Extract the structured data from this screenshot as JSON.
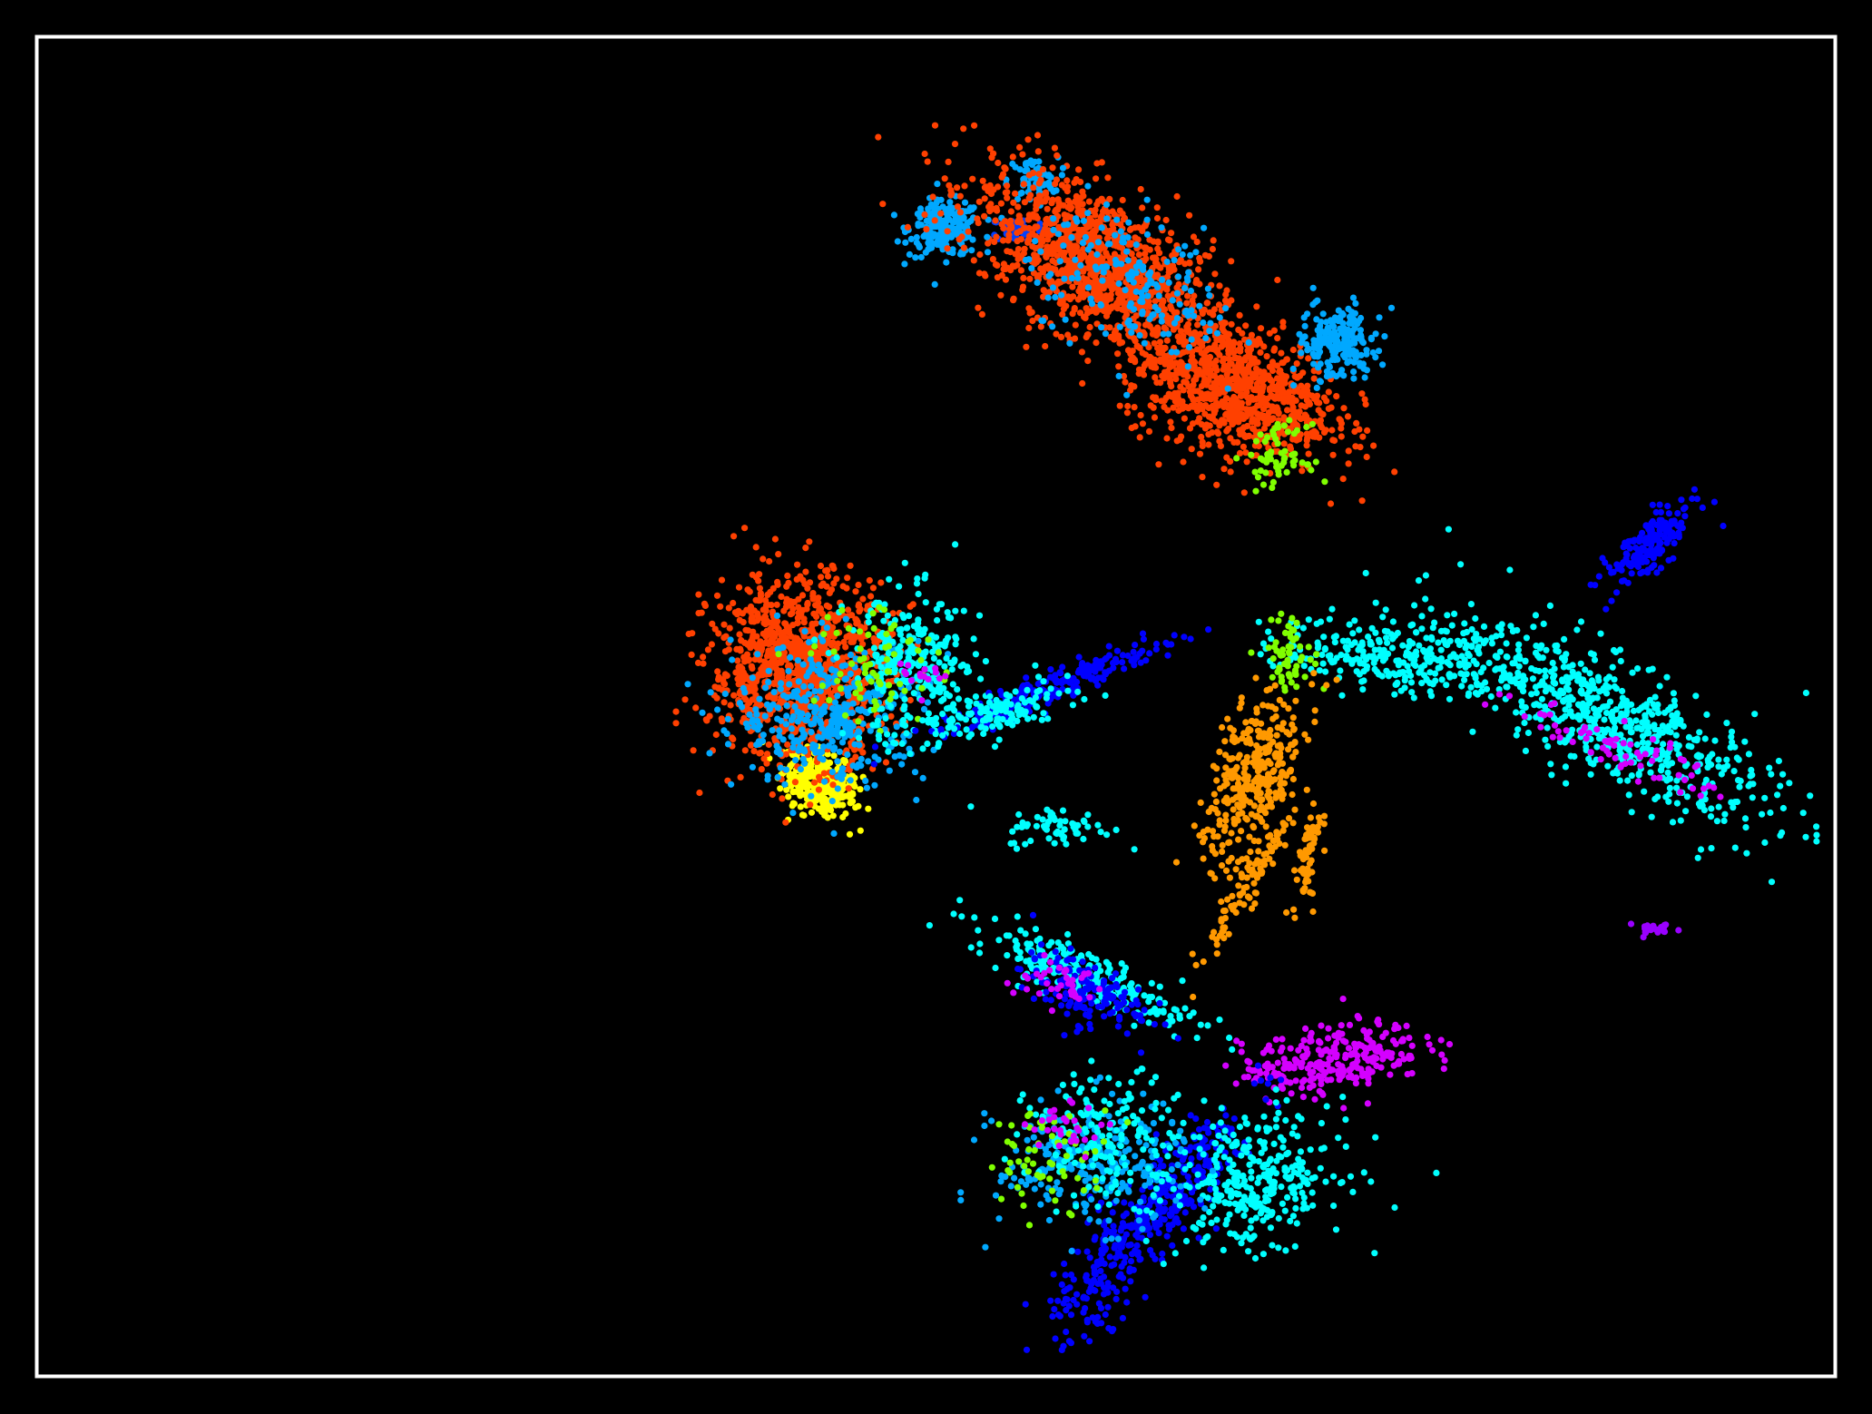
{
  "chart_data": {
    "type": "scatter",
    "title": "",
    "xlabel": "",
    "ylabel": "",
    "xlim": [
      0,
      100
    ],
    "ylim": [
      0,
      100
    ],
    "grid": false,
    "legend": "none",
    "axes_ticks": "none",
    "background_color": "#000000",
    "frame_color": "#ffffff",
    "clusters": [
      {
        "color": "#ffff00",
        "cx": 7.2,
        "cy": 44.3,
        "sx": 1.8,
        "sy": 1.1,
        "rot": -20,
        "n": 320
      },
      {
        "color": "#00a8ff",
        "cx": 19.1,
        "cy": 88.6,
        "sx": 1.7,
        "sy": 1.1,
        "rot": 0,
        "n": 220
      },
      {
        "color": "#00a8ff",
        "cx": 27.4,
        "cy": 92.5,
        "sx": 1.2,
        "sy": 0.9,
        "rot": 0,
        "n": 60
      },
      {
        "color": "#0040ff",
        "cx": 26.0,
        "cy": 88.6,
        "sx": 1.3,
        "sy": 0.5,
        "rot": 0,
        "n": 50
      },
      {
        "color": "#ff4000",
        "cx": 33.0,
        "cy": 86.0,
        "sx": 6.0,
        "sy": 2.8,
        "rot": -25,
        "n": 1100
      },
      {
        "color": "#ff4000",
        "cx": 46.5,
        "cy": 76.0,
        "sx": 5.0,
        "sy": 2.6,
        "rot": -15,
        "n": 900
      },
      {
        "color": "#00a8ff",
        "cx": 37.0,
        "cy": 84.0,
        "sx": 5.0,
        "sy": 2.6,
        "rot": -25,
        "n": 180
      },
      {
        "color": "#00a8ff",
        "cx": 56.5,
        "cy": 79.5,
        "sx": 1.9,
        "sy": 1.5,
        "rot": 20,
        "n": 200
      },
      {
        "color": "#80ff00",
        "cx": 50.7,
        "cy": 70.5,
        "sx": 1.4,
        "sy": 1.2,
        "rot": 0,
        "n": 60
      },
      {
        "color": "#0000ff",
        "cx": 86.0,
        "cy": 63.3,
        "sx": 2.6,
        "sy": 0.9,
        "rot": 35,
        "n": 180
      },
      {
        "color": "#ff4000",
        "cx": 5.4,
        "cy": 53.5,
        "sx": 4.3,
        "sy": 3.7,
        "rot": 0,
        "n": 1100
      },
      {
        "color": "#00a8ff",
        "cx": 8.2,
        "cy": 49.8,
        "sx": 4.5,
        "sy": 2.8,
        "rot": 0,
        "n": 380
      },
      {
        "color": "#00ffff",
        "cx": 16.2,
        "cy": 53.5,
        "sx": 3.2,
        "sy": 3.0,
        "rot": 0,
        "n": 260
      },
      {
        "color": "#80ff00",
        "cx": 12.5,
        "cy": 54.0,
        "sx": 3.0,
        "sy": 2.5,
        "rot": 0,
        "n": 70
      },
      {
        "color": "#0000ff",
        "cx": 30.0,
        "cy": 52.2,
        "sx": 6.0,
        "sy": 0.6,
        "rot": 18,
        "n": 220
      },
      {
        "color": "#00ffff",
        "cx": 23.5,
        "cy": 50.0,
        "sx": 4.0,
        "sy": 0.8,
        "rot": 12,
        "n": 130
      },
      {
        "color": "#d400ff",
        "cx": 16.5,
        "cy": 53.0,
        "sx": 1.0,
        "sy": 1.0,
        "rot": 0,
        "n": 15
      },
      {
        "color": "#00ffff",
        "cx": 82.0,
        "cy": 49.5,
        "sx": 8.5,
        "sy": 2.3,
        "rot": -25,
        "n": 650
      },
      {
        "color": "#00ffff",
        "cx": 62.0,
        "cy": 54.5,
        "sx": 5.5,
        "sy": 1.4,
        "rot": -5,
        "n": 280
      },
      {
        "color": "#d400ff",
        "cx": 83.5,
        "cy": 47.0,
        "sx": 5.0,
        "sy": 0.9,
        "rot": -18,
        "n": 70
      },
      {
        "color": "#80ff00",
        "cx": 52.0,
        "cy": 54.5,
        "sx": 1.3,
        "sy": 1.5,
        "rot": 0,
        "n": 60
      },
      {
        "color": "#ff9900",
        "cx": 48.5,
        "cy": 44.5,
        "sx": 3.6,
        "sy": 2.0,
        "rot": 60,
        "n": 340
      },
      {
        "color": "#ff9900",
        "cx": 48.0,
        "cy": 36.5,
        "sx": 3.2,
        "sy": 0.6,
        "rot": 55,
        "n": 90
      },
      {
        "color": "#ff9900",
        "cx": 53.5,
        "cy": 38.5,
        "sx": 2.5,
        "sy": 0.6,
        "rot": 80,
        "n": 60
      },
      {
        "color": "#00ffff",
        "cx": 30.0,
        "cy": 40.8,
        "sx": 2.5,
        "sy": 0.8,
        "rot": 0,
        "n": 60
      },
      {
        "color": "#00ffff",
        "cx": 32.5,
        "cy": 29.0,
        "sx": 5.5,
        "sy": 1.0,
        "rot": -20,
        "n": 240
      },
      {
        "color": "#0000ff",
        "cx": 32.0,
        "cy": 27.8,
        "sx": 3.0,
        "sy": 1.3,
        "rot": -15,
        "n": 150
      },
      {
        "color": "#d400ff",
        "cx": 30.0,
        "cy": 28.5,
        "sx": 2.2,
        "sy": 1.0,
        "rot": 0,
        "n": 40
      },
      {
        "color": "#9900ff",
        "cx": 86.5,
        "cy": 32.7,
        "sx": 1.3,
        "sy": 0.3,
        "rot": 0,
        "n": 20
      },
      {
        "color": "#d400ff",
        "cx": 56.0,
        "cy": 22.3,
        "sx": 4.3,
        "sy": 1.3,
        "rot": 8,
        "n": 280
      },
      {
        "color": "#0000ff",
        "cx": 38.5,
        "cy": 9.5,
        "sx": 6.5,
        "sy": 1.6,
        "rot": 45,
        "n": 420
      },
      {
        "color": "#00ffff",
        "cx": 48.5,
        "cy": 12.5,
        "sx": 4.0,
        "sy": 2.5,
        "rot": 10,
        "n": 320
      },
      {
        "color": "#00a8ff",
        "cx": 33.0,
        "cy": 14.0,
        "sx": 4.5,
        "sy": 2.5,
        "rot": 0,
        "n": 250
      },
      {
        "color": "#00ffff",
        "cx": 35.0,
        "cy": 16.0,
        "sx": 4.0,
        "sy": 2.5,
        "rot": 0,
        "n": 180
      },
      {
        "color": "#80ff00",
        "cx": 29.0,
        "cy": 14.5,
        "sx": 3.0,
        "sy": 2.0,
        "rot": 0,
        "n": 60
      },
      {
        "color": "#d400ff",
        "cx": 31.0,
        "cy": 17.0,
        "sx": 2.0,
        "sy": 1.0,
        "rot": 0,
        "n": 30
      }
    ]
  }
}
